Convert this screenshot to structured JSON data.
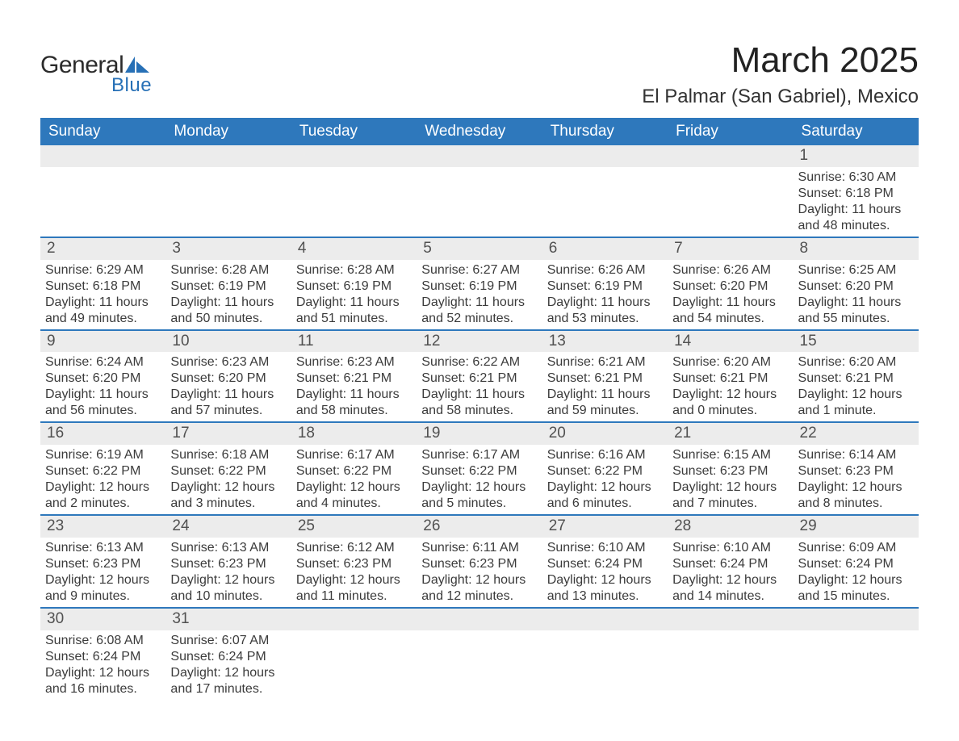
{
  "brand": {
    "general": "General",
    "blue": "Blue",
    "logo_color": "#2770b6",
    "general_color": "#2b2b2b"
  },
  "title": {
    "month": "March 2025",
    "location": "El Palmar (San Gabriel), Mexico",
    "month_fontsize": 44,
    "location_fontsize": 24
  },
  "colors": {
    "header_bg": "#2e78bc",
    "header_text": "#ffffff",
    "daynum_bg": "#ececec",
    "daynum_text": "#515151",
    "detail_text": "#3b3b3b",
    "row_border": "#2e78bc",
    "page_bg": "#ffffff"
  },
  "weekdays": [
    "Sunday",
    "Monday",
    "Tuesday",
    "Wednesday",
    "Thursday",
    "Friday",
    "Saturday"
  ],
  "weeks": [
    [
      null,
      null,
      null,
      null,
      null,
      null,
      {
        "num": "1",
        "sunrise": "Sunrise: 6:30 AM",
        "sunset": "Sunset: 6:18 PM",
        "daylight": "Daylight: 11 hours and 48 minutes."
      }
    ],
    [
      {
        "num": "2",
        "sunrise": "Sunrise: 6:29 AM",
        "sunset": "Sunset: 6:18 PM",
        "daylight": "Daylight: 11 hours and 49 minutes."
      },
      {
        "num": "3",
        "sunrise": "Sunrise: 6:28 AM",
        "sunset": "Sunset: 6:19 PM",
        "daylight": "Daylight: 11 hours and 50 minutes."
      },
      {
        "num": "4",
        "sunrise": "Sunrise: 6:28 AM",
        "sunset": "Sunset: 6:19 PM",
        "daylight": "Daylight: 11 hours and 51 minutes."
      },
      {
        "num": "5",
        "sunrise": "Sunrise: 6:27 AM",
        "sunset": "Sunset: 6:19 PM",
        "daylight": "Daylight: 11 hours and 52 minutes."
      },
      {
        "num": "6",
        "sunrise": "Sunrise: 6:26 AM",
        "sunset": "Sunset: 6:19 PM",
        "daylight": "Daylight: 11 hours and 53 minutes."
      },
      {
        "num": "7",
        "sunrise": "Sunrise: 6:26 AM",
        "sunset": "Sunset: 6:20 PM",
        "daylight": "Daylight: 11 hours and 54 minutes."
      },
      {
        "num": "8",
        "sunrise": "Sunrise: 6:25 AM",
        "sunset": "Sunset: 6:20 PM",
        "daylight": "Daylight: 11 hours and 55 minutes."
      }
    ],
    [
      {
        "num": "9",
        "sunrise": "Sunrise: 6:24 AM",
        "sunset": "Sunset: 6:20 PM",
        "daylight": "Daylight: 11 hours and 56 minutes."
      },
      {
        "num": "10",
        "sunrise": "Sunrise: 6:23 AM",
        "sunset": "Sunset: 6:20 PM",
        "daylight": "Daylight: 11 hours and 57 minutes."
      },
      {
        "num": "11",
        "sunrise": "Sunrise: 6:23 AM",
        "sunset": "Sunset: 6:21 PM",
        "daylight": "Daylight: 11 hours and 58 minutes."
      },
      {
        "num": "12",
        "sunrise": "Sunrise: 6:22 AM",
        "sunset": "Sunset: 6:21 PM",
        "daylight": "Daylight: 11 hours and 58 minutes."
      },
      {
        "num": "13",
        "sunrise": "Sunrise: 6:21 AM",
        "sunset": "Sunset: 6:21 PM",
        "daylight": "Daylight: 11 hours and 59 minutes."
      },
      {
        "num": "14",
        "sunrise": "Sunrise: 6:20 AM",
        "sunset": "Sunset: 6:21 PM",
        "daylight": "Daylight: 12 hours and 0 minutes."
      },
      {
        "num": "15",
        "sunrise": "Sunrise: 6:20 AM",
        "sunset": "Sunset: 6:21 PM",
        "daylight": "Daylight: 12 hours and 1 minute."
      }
    ],
    [
      {
        "num": "16",
        "sunrise": "Sunrise: 6:19 AM",
        "sunset": "Sunset: 6:22 PM",
        "daylight": "Daylight: 12 hours and 2 minutes."
      },
      {
        "num": "17",
        "sunrise": "Sunrise: 6:18 AM",
        "sunset": "Sunset: 6:22 PM",
        "daylight": "Daylight: 12 hours and 3 minutes."
      },
      {
        "num": "18",
        "sunrise": "Sunrise: 6:17 AM",
        "sunset": "Sunset: 6:22 PM",
        "daylight": "Daylight: 12 hours and 4 minutes."
      },
      {
        "num": "19",
        "sunrise": "Sunrise: 6:17 AM",
        "sunset": "Sunset: 6:22 PM",
        "daylight": "Daylight: 12 hours and 5 minutes."
      },
      {
        "num": "20",
        "sunrise": "Sunrise: 6:16 AM",
        "sunset": "Sunset: 6:22 PM",
        "daylight": "Daylight: 12 hours and 6 minutes."
      },
      {
        "num": "21",
        "sunrise": "Sunrise: 6:15 AM",
        "sunset": "Sunset: 6:23 PM",
        "daylight": "Daylight: 12 hours and 7 minutes."
      },
      {
        "num": "22",
        "sunrise": "Sunrise: 6:14 AM",
        "sunset": "Sunset: 6:23 PM",
        "daylight": "Daylight: 12 hours and 8 minutes."
      }
    ],
    [
      {
        "num": "23",
        "sunrise": "Sunrise: 6:13 AM",
        "sunset": "Sunset: 6:23 PM",
        "daylight": "Daylight: 12 hours and 9 minutes."
      },
      {
        "num": "24",
        "sunrise": "Sunrise: 6:13 AM",
        "sunset": "Sunset: 6:23 PM",
        "daylight": "Daylight: 12 hours and 10 minutes."
      },
      {
        "num": "25",
        "sunrise": "Sunrise: 6:12 AM",
        "sunset": "Sunset: 6:23 PM",
        "daylight": "Daylight: 12 hours and 11 minutes."
      },
      {
        "num": "26",
        "sunrise": "Sunrise: 6:11 AM",
        "sunset": "Sunset: 6:23 PM",
        "daylight": "Daylight: 12 hours and 12 minutes."
      },
      {
        "num": "27",
        "sunrise": "Sunrise: 6:10 AM",
        "sunset": "Sunset: 6:24 PM",
        "daylight": "Daylight: 12 hours and 13 minutes."
      },
      {
        "num": "28",
        "sunrise": "Sunrise: 6:10 AM",
        "sunset": "Sunset: 6:24 PM",
        "daylight": "Daylight: 12 hours and 14 minutes."
      },
      {
        "num": "29",
        "sunrise": "Sunrise: 6:09 AM",
        "sunset": "Sunset: 6:24 PM",
        "daylight": "Daylight: 12 hours and 15 minutes."
      }
    ],
    [
      {
        "num": "30",
        "sunrise": "Sunrise: 6:08 AM",
        "sunset": "Sunset: 6:24 PM",
        "daylight": "Daylight: 12 hours and 16 minutes."
      },
      {
        "num": "31",
        "sunrise": "Sunrise: 6:07 AM",
        "sunset": "Sunset: 6:24 PM",
        "daylight": "Daylight: 12 hours and 17 minutes."
      },
      null,
      null,
      null,
      null,
      null
    ]
  ]
}
